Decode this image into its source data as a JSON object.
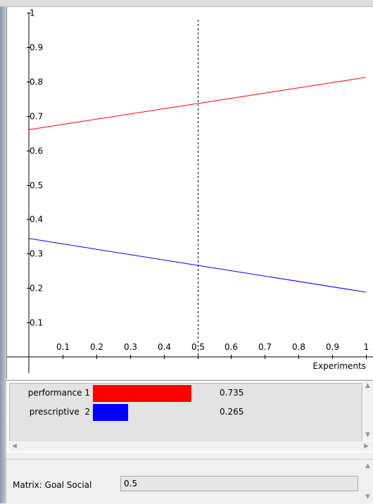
{
  "chart_data": {
    "type": "line",
    "x_ticks": [
      "0.1",
      "0.2",
      "0.3",
      "0.4",
      "0.5",
      "0.6",
      "0.7",
      "0.8",
      "0.9",
      "1"
    ],
    "y_ticks": [
      "0.1",
      "0.2",
      "0.3",
      "0.4",
      "0.5",
      "0.6",
      "0.7",
      "0.8",
      "0.9",
      "1"
    ],
    "xlabel": "Experiments",
    "xlim": [
      0,
      1
    ],
    "ylim": [
      0,
      1
    ],
    "grid": false,
    "marker_x": 0.5,
    "series": [
      {
        "color": "#ff0000",
        "x": [
          0,
          1
        ],
        "y": [
          0.66,
          0.812
        ]
      },
      {
        "color": "#0000ff",
        "x": [
          0,
          1
        ],
        "y": [
          0.344,
          0.188
        ]
      }
    ]
  },
  "legend": [
    {
      "label": "performance 1",
      "value": "0.735",
      "fraction": 0.735,
      "color": "#ff0000"
    },
    {
      "label": "prescriptive  2",
      "value": "0.265",
      "fraction": 0.265,
      "color": "#0000ff"
    }
  ],
  "parameter": {
    "label": "Matrix: Goal Social",
    "value": "0.5"
  }
}
